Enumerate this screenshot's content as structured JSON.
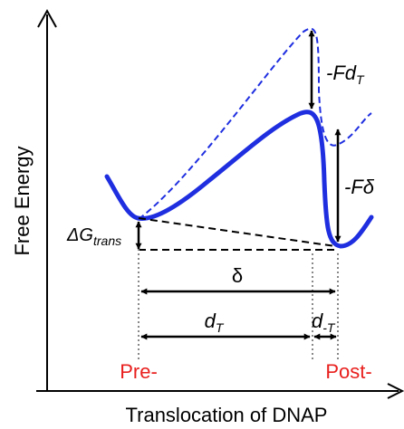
{
  "axes": {
    "x_label": "Translocation of DNAP",
    "y_label": "Free Energy"
  },
  "states": {
    "pre_label": "Pre-",
    "post_label": "Post-",
    "state_label_color": "#e8201e"
  },
  "curves": {
    "loaded_style": "dashed",
    "unloaded_style": "solid",
    "curve_color": "#1f2fe0"
  },
  "annotations": {
    "delta_g": {
      "prefix": "ΔG",
      "subscript": "trans"
    },
    "delta": "δ",
    "d_t": {
      "base": "d",
      "subscript": "T"
    },
    "d_minus_t": {
      "base": "d",
      "subscript": "-T"
    },
    "f_d_t": {
      "prefix": "-Fd",
      "subscript": "T"
    },
    "f_delta": {
      "prefix": "-F",
      "symbol": "δ"
    }
  }
}
